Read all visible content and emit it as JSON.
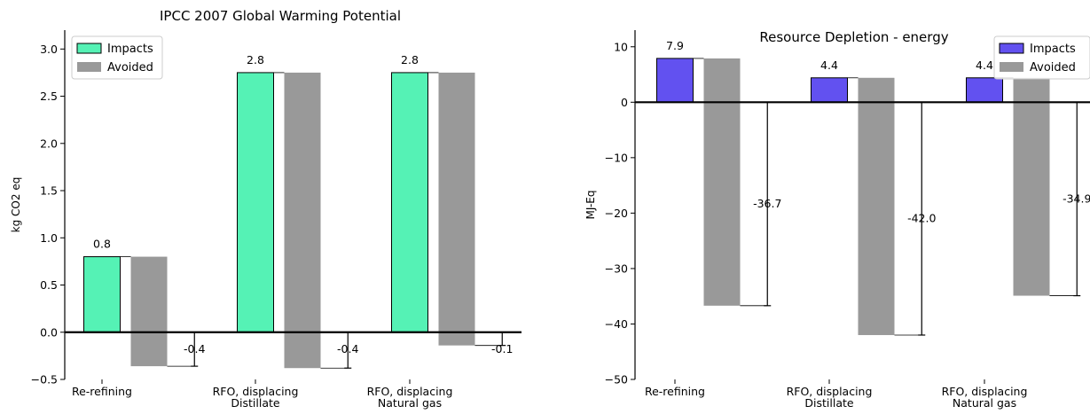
{
  "chart_data": [
    {
      "type": "bar",
      "title": "IPCC 2007 Global Warming Potential",
      "ylabel": "kg CO2 eq",
      "xlabel": "",
      "categories": [
        "Re-refining",
        "RFO, displacing\nDistillate",
        "RFO, displacing\nNatural gas"
      ],
      "series": [
        {
          "name": "Impacts",
          "values": [
            0.8,
            2.75,
            2.75
          ],
          "color": "#55f2b5"
        },
        {
          "name": "Avoided",
          "values": [
            -0.36,
            -0.38,
            -0.14
          ],
          "color": "#999999"
        }
      ],
      "bar_labels": [
        "0.8",
        "2.8",
        "2.8"
      ],
      "net_values": [
        -0.36,
        -0.38,
        -0.14
      ],
      "net_labels": [
        "-0.4",
        "-0.4",
        "-0.1"
      ],
      "ylim": [
        -0.5,
        3.2
      ],
      "yticks": [
        -0.5,
        0.0,
        0.5,
        1.0,
        1.5,
        2.0,
        2.5,
        3.0
      ],
      "ytick_labels": [
        "−0.5",
        "0.0",
        "0.5",
        "1.0",
        "1.5",
        "2.0",
        "2.5",
        "3.0"
      ],
      "legend": "top-left",
      "grid": false
    },
    {
      "type": "bar",
      "title": "Resource Depletion - energy",
      "ylabel": "MJ-Eq",
      "xlabel": "",
      "categories": [
        "Re-refining",
        "RFO, displacing\nDistillate",
        "RFO, displacing\nNatural gas"
      ],
      "series": [
        {
          "name": "Impacts",
          "values": [
            7.9,
            4.4,
            4.4
          ],
          "color": "#6251f0"
        },
        {
          "name": "Avoided",
          "values": [
            -36.7,
            -42.0,
            -34.9
          ],
          "color": "#999999"
        }
      ],
      "bar_labels": [
        "7.9",
        "4.4",
        "4.4"
      ],
      "net_values": [
        -36.7,
        -42.0,
        -34.9
      ],
      "net_labels": [
        "-36.7",
        "-42.0",
        "-34.9"
      ],
      "ylim": [
        -50,
        13
      ],
      "yticks": [
        -50,
        -40,
        -30,
        -20,
        -10,
        0,
        10
      ],
      "ytick_labels": [
        "−50",
        "−40",
        "−30",
        "−20",
        "−10",
        "0",
        "10"
      ],
      "legend": "top-right",
      "grid": false
    }
  ]
}
